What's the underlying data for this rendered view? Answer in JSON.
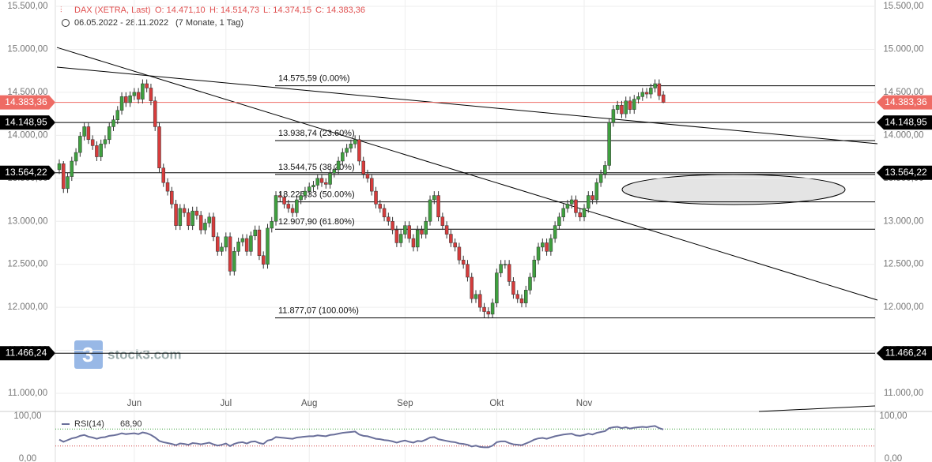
{
  "chart_data": [
    {
      "type": "candlestick",
      "title": "DAX (XETRA, Last)",
      "ohlc_labels": [
        "O: 14.471,10",
        "H: 14.514,73",
        "L: 14.374,15",
        "C: 14.383,36"
      ],
      "subtitle": "06.05.2022 - 28.11.2022",
      "period": "(7 Monate, 1 Tag)",
      "watermark": "stock3.com",
      "up_color": "#3f9f3f",
      "down_color": "#d63c3c",
      "ylim": [
        11000,
        15500
      ],
      "yticks": [
        {
          "value": 11000,
          "label": "11.000,00"
        },
        {
          "value": 11500,
          "label": "11.500,00"
        },
        {
          "value": 12000,
          "label": "12.000,00"
        },
        {
          "value": 12500,
          "label": "12.500,00"
        },
        {
          "value": 13000,
          "label": "13.000,00"
        },
        {
          "value": 13500,
          "label": "13.500,00"
        },
        {
          "value": 14000,
          "label": "14.000,00"
        },
        {
          "value": 14500,
          "label": "14.500,00"
        },
        {
          "value": 15000,
          "label": "15.000,00"
        },
        {
          "value": 15500,
          "label": "15.500,00"
        }
      ],
      "xticks": [
        {
          "value": 18,
          "label": "Jun"
        },
        {
          "value": 40,
          "label": "Jul"
        },
        {
          "value": 60,
          "label": "Aug"
        },
        {
          "value": 83,
          "label": "Sep"
        },
        {
          "value": 105,
          "label": "Okt"
        },
        {
          "value": 126,
          "label": "Nov"
        }
      ],
      "price_tags": [
        {
          "value": 14383.36,
          "label": "14.383,36",
          "color": "#ee6b64"
        },
        {
          "value": 14148.95,
          "label": "14.148,95",
          "color": "#000000"
        },
        {
          "value": 13564.22,
          "label": "13.564,22",
          "color": "#000000"
        },
        {
          "value": 11466.24,
          "label": "11.466,24",
          "color": "#000000"
        }
      ],
      "fib_levels": [
        {
          "value": 14575.59,
          "label": "14.575,59 (0.00%)"
        },
        {
          "value": 13938.74,
          "label": "13.938,74 (23.60%)"
        },
        {
          "value": 13544.75,
          "label": "13.544,75 (38.20%)"
        },
        {
          "value": 13226.33,
          "label": "13.226,33 (50.00%)"
        },
        {
          "value": 12907.9,
          "label": "12.907,90 (61.80%)"
        },
        {
          "value": 11877.07,
          "label": "11.877,07 (100.00%)"
        }
      ],
      "trendlines": [
        {
          "x": [
            0,
            196.4
          ],
          "y": [
            15022,
            12084
          ]
        },
        {
          "x": [
            0,
            196.4
          ],
          "y": [
            14793,
            13902
          ]
        }
      ],
      "candles": [
        [
          13600,
          13720,
          13550,
          13670
        ],
        [
          13670,
          13700,
          13330,
          13380
        ],
        [
          13380,
          13570,
          13330,
          13520
        ],
        [
          13520,
          13750,
          13470,
          13700
        ],
        [
          13700,
          13850,
          13650,
          13800
        ],
        [
          13800,
          14040,
          13750,
          13990
        ],
        [
          13990,
          14150,
          13940,
          14100
        ],
        [
          14100,
          14150,
          13900,
          13950
        ],
        [
          13950,
          14000,
          13830,
          13880
        ],
        [
          13880,
          13930,
          13700,
          13750
        ],
        [
          13750,
          13950,
          13700,
          13900
        ],
        [
          13900,
          14000,
          13850,
          13950
        ],
        [
          13950,
          14150,
          13900,
          14100
        ],
        [
          14100,
          14230,
          14050,
          14180
        ],
        [
          14180,
          14340,
          14130,
          14290
        ],
        [
          14290,
          14500,
          14240,
          14450
        ],
        [
          14450,
          14500,
          14330,
          14380
        ],
        [
          14380,
          14510,
          14330,
          14460
        ],
        [
          14460,
          14550,
          14410,
          14500
        ],
        [
          14500,
          14550,
          14370,
          14420
        ],
        [
          14420,
          14650,
          14370,
          14600
        ],
        [
          14600,
          14650,
          14500,
          14550
        ],
        [
          14550,
          14600,
          14350,
          14400
        ],
        [
          14400,
          14450,
          14050,
          14100
        ],
        [
          14100,
          14150,
          13570,
          13620
        ],
        [
          13620,
          13670,
          13400,
          13450
        ],
        [
          13450,
          13500,
          13300,
          13350
        ],
        [
          13350,
          13400,
          13150,
          13200
        ],
        [
          13200,
          13250,
          12900,
          12950
        ],
        [
          12950,
          13200,
          12900,
          13150
        ],
        [
          13150,
          13200,
          13050,
          13100
        ],
        [
          13100,
          13150,
          12900,
          12950
        ],
        [
          12950,
          13170,
          12900,
          13120
        ],
        [
          13120,
          13170,
          13020,
          13070
        ],
        [
          13070,
          13120,
          12850,
          12900
        ],
        [
          12900,
          13030,
          12850,
          12980
        ],
        [
          12980,
          13100,
          12930,
          13050
        ],
        [
          13050,
          13100,
          12770,
          12820
        ],
        [
          12820,
          12870,
          12600,
          12650
        ],
        [
          12650,
          12750,
          12600,
          12700
        ],
        [
          12700,
          12870,
          12650,
          12820
        ],
        [
          12820,
          12870,
          12370,
          12420
        ],
        [
          12420,
          12700,
          12370,
          12650
        ],
        [
          12650,
          12810,
          12600,
          12760
        ],
        [
          12760,
          12850,
          12710,
          12800
        ],
        [
          12800,
          12850,
          12600,
          12650
        ],
        [
          12650,
          12880,
          12600,
          12830
        ],
        [
          12830,
          12950,
          12780,
          12900
        ],
        [
          12900,
          12950,
          12550,
          12600
        ],
        [
          12600,
          12650,
          12450,
          12500
        ],
        [
          12500,
          12970,
          12450,
          12920
        ],
        [
          12920,
          13050,
          12870,
          13000
        ],
        [
          13000,
          13350,
          12950,
          13300
        ],
        [
          13300,
          13350,
          13230,
          13280
        ],
        [
          13280,
          13330,
          13150,
          13200
        ],
        [
          13200,
          13250,
          13100,
          13150
        ],
        [
          13150,
          13200,
          13050,
          13100
        ],
        [
          13100,
          13300,
          13050,
          13250
        ],
        [
          13250,
          13350,
          13200,
          13300
        ],
        [
          13300,
          13400,
          13250,
          13350
        ],
        [
          13350,
          13450,
          13300,
          13400
        ],
        [
          13400,
          13470,
          13350,
          13420
        ],
        [
          13420,
          13550,
          13370,
          13500
        ],
        [
          13500,
          13550,
          13400,
          13450
        ],
        [
          13450,
          13500,
          13380,
          13430
        ],
        [
          13430,
          13610,
          13380,
          13560
        ],
        [
          13560,
          13650,
          13510,
          13600
        ],
        [
          13600,
          13750,
          13550,
          13700
        ],
        [
          13700,
          13850,
          13650,
          13800
        ],
        [
          13800,
          13900,
          13750,
          13850
        ],
        [
          13850,
          13950,
          13800,
          13900
        ],
        [
          13900,
          14000,
          13850,
          13950
        ],
        [
          13950,
          14000,
          13650,
          13700
        ],
        [
          13700,
          13750,
          13500,
          13550
        ],
        [
          13550,
          13600,
          13450,
          13500
        ],
        [
          13500,
          13550,
          13300,
          13350
        ],
        [
          13350,
          13400,
          13150,
          13200
        ],
        [
          13200,
          13250,
          13100,
          13150
        ],
        [
          13150,
          13200,
          13000,
          13050
        ],
        [
          13050,
          13100,
          12950,
          13000
        ],
        [
          13000,
          13050,
          12850,
          12900
        ],
        [
          12900,
          12950,
          12700,
          12750
        ],
        [
          12750,
          12900,
          12700,
          12850
        ],
        [
          12850,
          13000,
          12800,
          12950
        ],
        [
          12950,
          13000,
          12750,
          12800
        ],
        [
          12800,
          12850,
          12650,
          12700
        ],
        [
          12700,
          12950,
          12650,
          12900
        ],
        [
          12900,
          12950,
          12800,
          12850
        ],
        [
          12850,
          13050,
          12800,
          13000
        ],
        [
          13000,
          13300,
          12950,
          13250
        ],
        [
          13250,
          13350,
          13200,
          13300
        ],
        [
          13300,
          13350,
          13000,
          13050
        ],
        [
          13050,
          13100,
          12900,
          12950
        ],
        [
          12950,
          13000,
          12800,
          12850
        ],
        [
          12850,
          12900,
          12700,
          12750
        ],
        [
          12750,
          12800,
          12650,
          12700
        ],
        [
          12700,
          12750,
          12500,
          12550
        ],
        [
          12550,
          12600,
          12450,
          12500
        ],
        [
          12500,
          12550,
          12300,
          12350
        ],
        [
          12350,
          12400,
          12050,
          12100
        ],
        [
          12100,
          12200,
          12050,
          12150
        ],
        [
          12150,
          12200,
          11950,
          12000
        ],
        [
          12000,
          12050,
          11880,
          11950
        ],
        [
          11950,
          12000,
          11870,
          11920
        ],
        [
          11920,
          12100,
          11880,
          12050
        ],
        [
          12050,
          12450,
          12000,
          12400
        ],
        [
          12400,
          12550,
          12350,
          12500
        ],
        [
          12500,
          12550,
          12450,
          12500
        ],
        [
          12500,
          12550,
          12250,
          12300
        ],
        [
          12300,
          12350,
          12100,
          12150
        ],
        [
          12150,
          12200,
          12050,
          12100
        ],
        [
          12100,
          12150,
          12000,
          12050
        ],
        [
          12050,
          12250,
          12000,
          12200
        ],
        [
          12200,
          12400,
          12150,
          12350
        ],
        [
          12350,
          12600,
          12300,
          12550
        ],
        [
          12550,
          12750,
          12500,
          12700
        ],
        [
          12700,
          12800,
          12650,
          12750
        ],
        [
          12750,
          12800,
          12600,
          12650
        ],
        [
          12650,
          12850,
          12600,
          12800
        ],
        [
          12800,
          13000,
          12750,
          12950
        ],
        [
          12950,
          13100,
          12900,
          13050
        ],
        [
          13050,
          13200,
          13000,
          13150
        ],
        [
          13150,
          13250,
          13100,
          13200
        ],
        [
          13200,
          13300,
          13150,
          13250
        ],
        [
          13250,
          13300,
          13050,
          13100
        ],
        [
          13100,
          13150,
          13000,
          13050
        ],
        [
          13050,
          13200,
          13000,
          13150
        ],
        [
          13150,
          13350,
          13100,
          13300
        ],
        [
          13300,
          13350,
          13200,
          13250
        ],
        [
          13250,
          13500,
          13200,
          13450
        ],
        [
          13450,
          13600,
          13400,
          13550
        ],
        [
          13550,
          13700,
          13500,
          13650
        ],
        [
          13650,
          14200,
          13600,
          14150
        ],
        [
          14150,
          14350,
          14100,
          14300
        ],
        [
          14300,
          14400,
          14250,
          14350
        ],
        [
          14350,
          14400,
          14200,
          14250
        ],
        [
          14250,
          14450,
          14200,
          14400
        ],
        [
          14400,
          14450,
          14250,
          14300
        ],
        [
          14300,
          14470,
          14250,
          14420
        ],
        [
          14420,
          14500,
          14370,
          14450
        ],
        [
          14450,
          14550,
          14400,
          14500
        ],
        [
          14500,
          14550,
          14430,
          14480
        ],
        [
          14480,
          14600,
          14430,
          14550
        ],
        [
          14550,
          14650,
          14500,
          14600
        ],
        [
          14600,
          14650,
          14410,
          14460
        ],
        [
          14471.1,
          14514.73,
          14374.15,
          14383.36
        ]
      ]
    },
    {
      "type": "line",
      "series": [
        {
          "name": "RSI(14)",
          "color": "#6a6f9a",
          "last_label": "68,90",
          "values": [
            45,
            40,
            44,
            48,
            50,
            54,
            56,
            52,
            50,
            47,
            50,
            51,
            54,
            55,
            57,
            60,
            58,
            59,
            60,
            58,
            62,
            60,
            56,
            50,
            42,
            39,
            37,
            35,
            32,
            36,
            35,
            33,
            37,
            36,
            34,
            36,
            38,
            34,
            31,
            33,
            36,
            30,
            35,
            38,
            39,
            36,
            40,
            41,
            37,
            35,
            43,
            45,
            51,
            50,
            49,
            48,
            47,
            50,
            51,
            52,
            53,
            53,
            55,
            54,
            53,
            56,
            57,
            59,
            61,
            62,
            63,
            64,
            57,
            54,
            53,
            50,
            47,
            46,
            44,
            43,
            41,
            38,
            41,
            43,
            40,
            38,
            42,
            41,
            45,
            50,
            51,
            46,
            44,
            42,
            40,
            39,
            36,
            35,
            33,
            29,
            31,
            28,
            27,
            27,
            31,
            39,
            41,
            41,
            37,
            34,
            33,
            32,
            36,
            40,
            45,
            48,
            49,
            47,
            50,
            53,
            55,
            57,
            58,
            59,
            55,
            54,
            56,
            59,
            57,
            61,
            63,
            65,
            72,
            74,
            75,
            72,
            74,
            71,
            73,
            74,
            75,
            74,
            76,
            77,
            72,
            68.9
          ]
        }
      ],
      "ylim": [
        0,
        100
      ],
      "yticks": [
        {
          "value": 0,
          "label": "0,00"
        },
        {
          "value": 100,
          "label": "100,00"
        }
      ],
      "bands": [
        {
          "value": 70,
          "color": "#3aa03a"
        },
        {
          "value": 30,
          "color": "#d04040"
        }
      ]
    }
  ]
}
